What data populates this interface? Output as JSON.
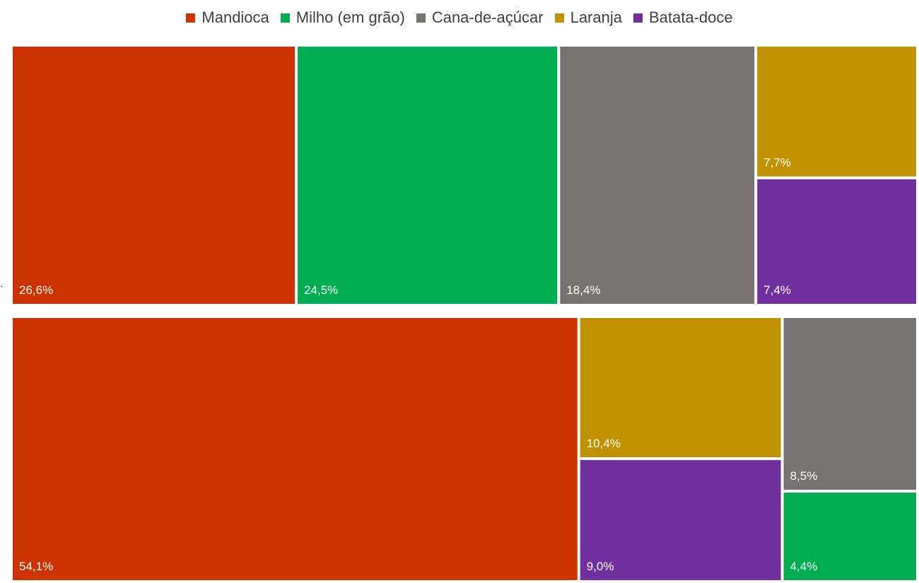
{
  "chart_data": {
    "type": "treemap",
    "legend": {
      "placement": "top-center",
      "entries": [
        {
          "name": "Mandioca",
          "color": "#cc3300"
        },
        {
          "name": "Milho (em grão)",
          "color": "#00ad50"
        },
        {
          "name": "Cana-de-açúcar",
          "color": "#777372"
        },
        {
          "name": "Laranja",
          "color": "#c09100"
        },
        {
          "name": "Batata-doce",
          "color": "#7030a0"
        }
      ]
    },
    "groups": [
      {
        "items": [
          {
            "name": "Mandioca",
            "value": 26.6,
            "label": "26,6%"
          },
          {
            "name": "Milho (em grão)",
            "value": 24.5,
            "label": "24,5%"
          },
          {
            "name": "Cana-de-açúcar",
            "value": 18.4,
            "label": "18,4%"
          },
          {
            "name": "Laranja",
            "value": 7.7,
            "label": "7,7%"
          },
          {
            "name": "Batata-doce",
            "value": 7.4,
            "label": "7,4%"
          }
        ]
      },
      {
        "items": [
          {
            "name": "Mandioca",
            "value": 54.1,
            "label": "54,1%"
          },
          {
            "name": "Laranja",
            "value": 10.4,
            "label": "10,4%"
          },
          {
            "name": "Batata-doce",
            "value": 9.0,
            "label": "9,0%"
          },
          {
            "name": "Cana-de-açúcar",
            "value": 8.5,
            "label": "8,5%"
          },
          {
            "name": "Milho (em grão)",
            "value": 4.4,
            "label": "4,4%"
          }
        ]
      }
    ],
    "left_marker": "."
  }
}
